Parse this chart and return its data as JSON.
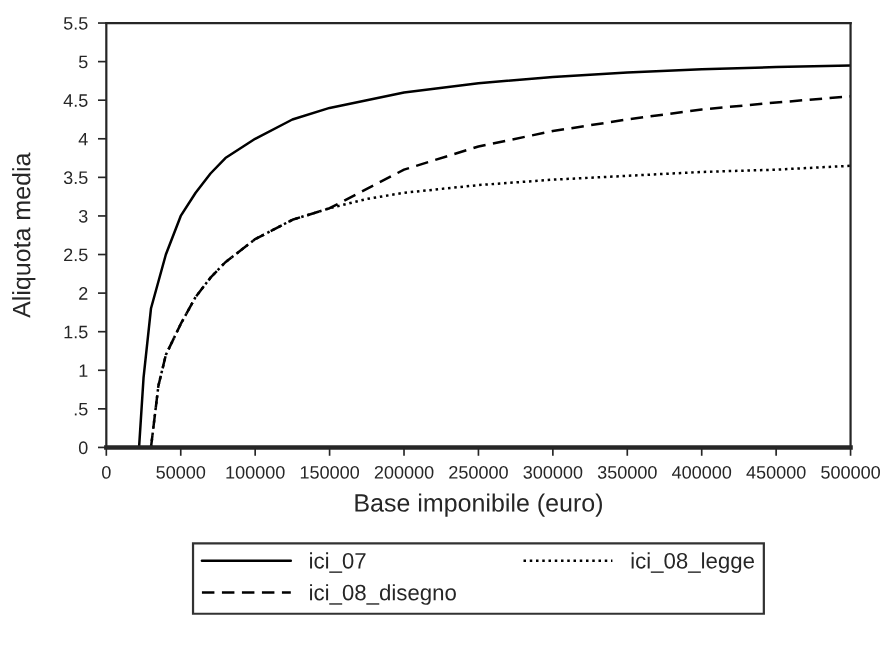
{
  "chart_data": {
    "type": "line",
    "xlabel": "Base imponibile (euro)",
    "ylabel": "Aliquota media",
    "xlim": [
      0,
      500000
    ],
    "xticks": [
      0,
      50000,
      100000,
      150000,
      200000,
      250000,
      300000,
      350000,
      400000,
      450000,
      500000
    ],
    "ylim": [
      0,
      5.5
    ],
    "yticks": [
      0,
      {
        "value": 0.5,
        "label": ".5"
      },
      1,
      1.5,
      2,
      2.5,
      3,
      3.5,
      4,
      4.5,
      5,
      5.5
    ],
    "grid": false,
    "legend": "bottom",
    "series": [
      {
        "name": "ici_07",
        "color": "#000000",
        "line_style": "solid",
        "x": [
          22000,
          25000,
          30000,
          40000,
          50000,
          60000,
          70000,
          80000,
          100000,
          125000,
          150000,
          200000,
          250000,
          300000,
          350000,
          400000,
          450000,
          500000
        ],
        "values": [
          0,
          0.9,
          1.8,
          2.5,
          3.0,
          3.3,
          3.55,
          3.75,
          4.0,
          4.25,
          4.4,
          4.6,
          4.72,
          4.8,
          4.86,
          4.9,
          4.93,
          4.95
        ]
      },
      {
        "name": "ici_08_disegno",
        "color": "#000000",
        "line_style": "dashed",
        "x": [
          30000,
          35000,
          40000,
          50000,
          60000,
          70000,
          80000,
          100000,
          125000,
          150000,
          175000,
          200000,
          250000,
          300000,
          350000,
          400000,
          450000,
          500000
        ],
        "values": [
          0,
          0.8,
          1.2,
          1.6,
          1.95,
          2.2,
          2.4,
          2.7,
          2.95,
          3.1,
          3.35,
          3.6,
          3.9,
          4.1,
          4.25,
          4.38,
          4.47,
          4.55
        ]
      },
      {
        "name": "ici_08_legge",
        "color": "#000000",
        "line_style": "dotted",
        "x": [
          30000,
          35000,
          40000,
          50000,
          60000,
          70000,
          80000,
          100000,
          125000,
          150000,
          175000,
          200000,
          250000,
          300000,
          350000,
          400000,
          450000,
          500000
        ],
        "values": [
          0,
          0.8,
          1.2,
          1.6,
          1.95,
          2.2,
          2.4,
          2.7,
          2.95,
          3.1,
          3.22,
          3.3,
          3.4,
          3.47,
          3.52,
          3.57,
          3.6,
          3.65
        ]
      }
    ]
  }
}
